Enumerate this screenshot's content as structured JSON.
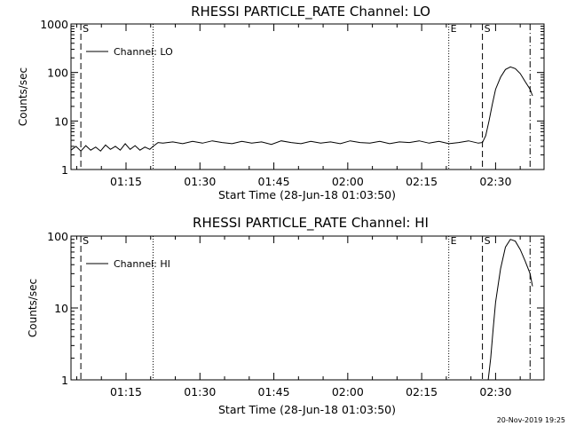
{
  "footer": {
    "date_stamp": "20-Nov-2019 19:25"
  },
  "chart_data": [
    {
      "type": "line",
      "title": "RHESSI PARTICLE_RATE Channel: LO",
      "xlabel": "Start Time (28-Jun-18 01:03:50)",
      "ylabel": "Counts/sec",
      "y_scale": "log",
      "ylim": [
        1,
        1000
      ],
      "xlim": [
        "01:03:50",
        "02:39:50"
      ],
      "xticks": [
        "01:15",
        "01:30",
        "01:45",
        "02:00",
        "02:15",
        "02:30"
      ],
      "yticks": [
        "1",
        "10",
        "100",
        "1000"
      ],
      "grid": false,
      "legend": {
        "position": "top-left",
        "entries": [
          "Channel: LO"
        ]
      },
      "markers": [
        {
          "label": "S",
          "time": "01:05:50",
          "style": "dashed"
        },
        {
          "label": "",
          "time": "01:20:30",
          "style": "dotted"
        },
        {
          "label": "E",
          "time": "02:20:30",
          "style": "dotted"
        },
        {
          "label": "S",
          "time": "02:27:20",
          "style": "dashed"
        },
        {
          "label": "",
          "time": "02:37:00",
          "style": "dash-dot"
        }
      ],
      "series": [
        {
          "name": "Channel: LO",
          "x": [
            "01:03:50",
            "01:04:50",
            "01:05:50",
            "01:06:50",
            "01:07:50",
            "01:08:50",
            "01:09:50",
            "01:10:50",
            "01:11:50",
            "01:12:50",
            "01:13:50",
            "01:14:50",
            "01:15:50",
            "01:16:50",
            "01:17:50",
            "01:18:50",
            "01:19:50",
            "01:20:30",
            "01:21:30",
            "01:22:30",
            "01:24:30",
            "01:26:30",
            "01:28:30",
            "01:30:30",
            "01:32:30",
            "01:34:30",
            "01:36:30",
            "01:38:30",
            "01:40:30",
            "01:42:30",
            "01:44:30",
            "01:46:30",
            "01:48:30",
            "01:50:30",
            "01:52:30",
            "01:54:30",
            "01:56:30",
            "01:58:30",
            "02:00:30",
            "02:02:30",
            "02:04:30",
            "02:06:30",
            "02:08:30",
            "02:10:30",
            "02:12:30",
            "02:14:30",
            "02:16:30",
            "02:18:30",
            "02:20:30",
            "02:22:30",
            "02:24:30",
            "02:26:30",
            "02:27:20",
            "02:28:00",
            "02:28:40",
            "02:29:20",
            "02:30:00",
            "02:31:00",
            "02:32:00",
            "02:33:00",
            "02:34:00",
            "02:35:00",
            "02:36:00",
            "02:37:00",
            "02:37:30"
          ],
          "y": [
            2.5,
            3.0,
            2.4,
            3.1,
            2.5,
            2.9,
            2.4,
            3.2,
            2.6,
            3.0,
            2.5,
            3.4,
            2.6,
            3.1,
            2.5,
            2.9,
            2.6,
            3.0,
            3.6,
            3.5,
            3.7,
            3.4,
            3.8,
            3.5,
            3.9,
            3.6,
            3.4,
            3.8,
            3.5,
            3.7,
            3.3,
            3.9,
            3.6,
            3.4,
            3.8,
            3.5,
            3.7,
            3.4,
            3.9,
            3.6,
            3.5,
            3.8,
            3.4,
            3.7,
            3.6,
            3.9,
            3.5,
            3.8,
            3.4,
            3.6,
            3.9,
            3.5,
            3.6,
            5,
            10,
            22,
            45,
            80,
            115,
            130,
            120,
            95,
            65,
            45,
            33
          ]
        }
      ]
    },
    {
      "type": "line",
      "title": "RHESSI PARTICLE_RATE Channel: HI",
      "xlabel": "Start Time (28-Jun-18 01:03:50)",
      "ylabel": "Counts/sec",
      "y_scale": "log",
      "ylim": [
        1,
        100
      ],
      "xlim": [
        "01:03:50",
        "02:39:50"
      ],
      "xticks": [
        "01:15",
        "01:30",
        "01:45",
        "02:00",
        "02:15",
        "02:30"
      ],
      "yticks": [
        "1",
        "10",
        "100"
      ],
      "grid": false,
      "legend": {
        "position": "top-left",
        "entries": [
          "Channel: HI"
        ]
      },
      "markers": [
        {
          "label": "S",
          "time": "01:05:50",
          "style": "dashed"
        },
        {
          "label": "",
          "time": "01:20:30",
          "style": "dotted"
        },
        {
          "label": "E",
          "time": "02:20:30",
          "style": "dotted"
        },
        {
          "label": "S",
          "time": "02:27:20",
          "style": "dashed"
        },
        {
          "label": "",
          "time": "02:37:00",
          "style": "dash-dot"
        }
      ],
      "series": [
        {
          "name": "Channel: HI",
          "x": [
            "02:28:30",
            "02:29:00",
            "02:29:30",
            "02:30:00",
            "02:31:00",
            "02:32:00",
            "02:33:00",
            "02:34:00",
            "02:35:00",
            "02:36:00",
            "02:37:00",
            "02:37:30"
          ],
          "y": [
            1.0,
            2.0,
            5.0,
            12,
            35,
            70,
            90,
            85,
            65,
            45,
            30,
            20
          ]
        }
      ]
    }
  ]
}
